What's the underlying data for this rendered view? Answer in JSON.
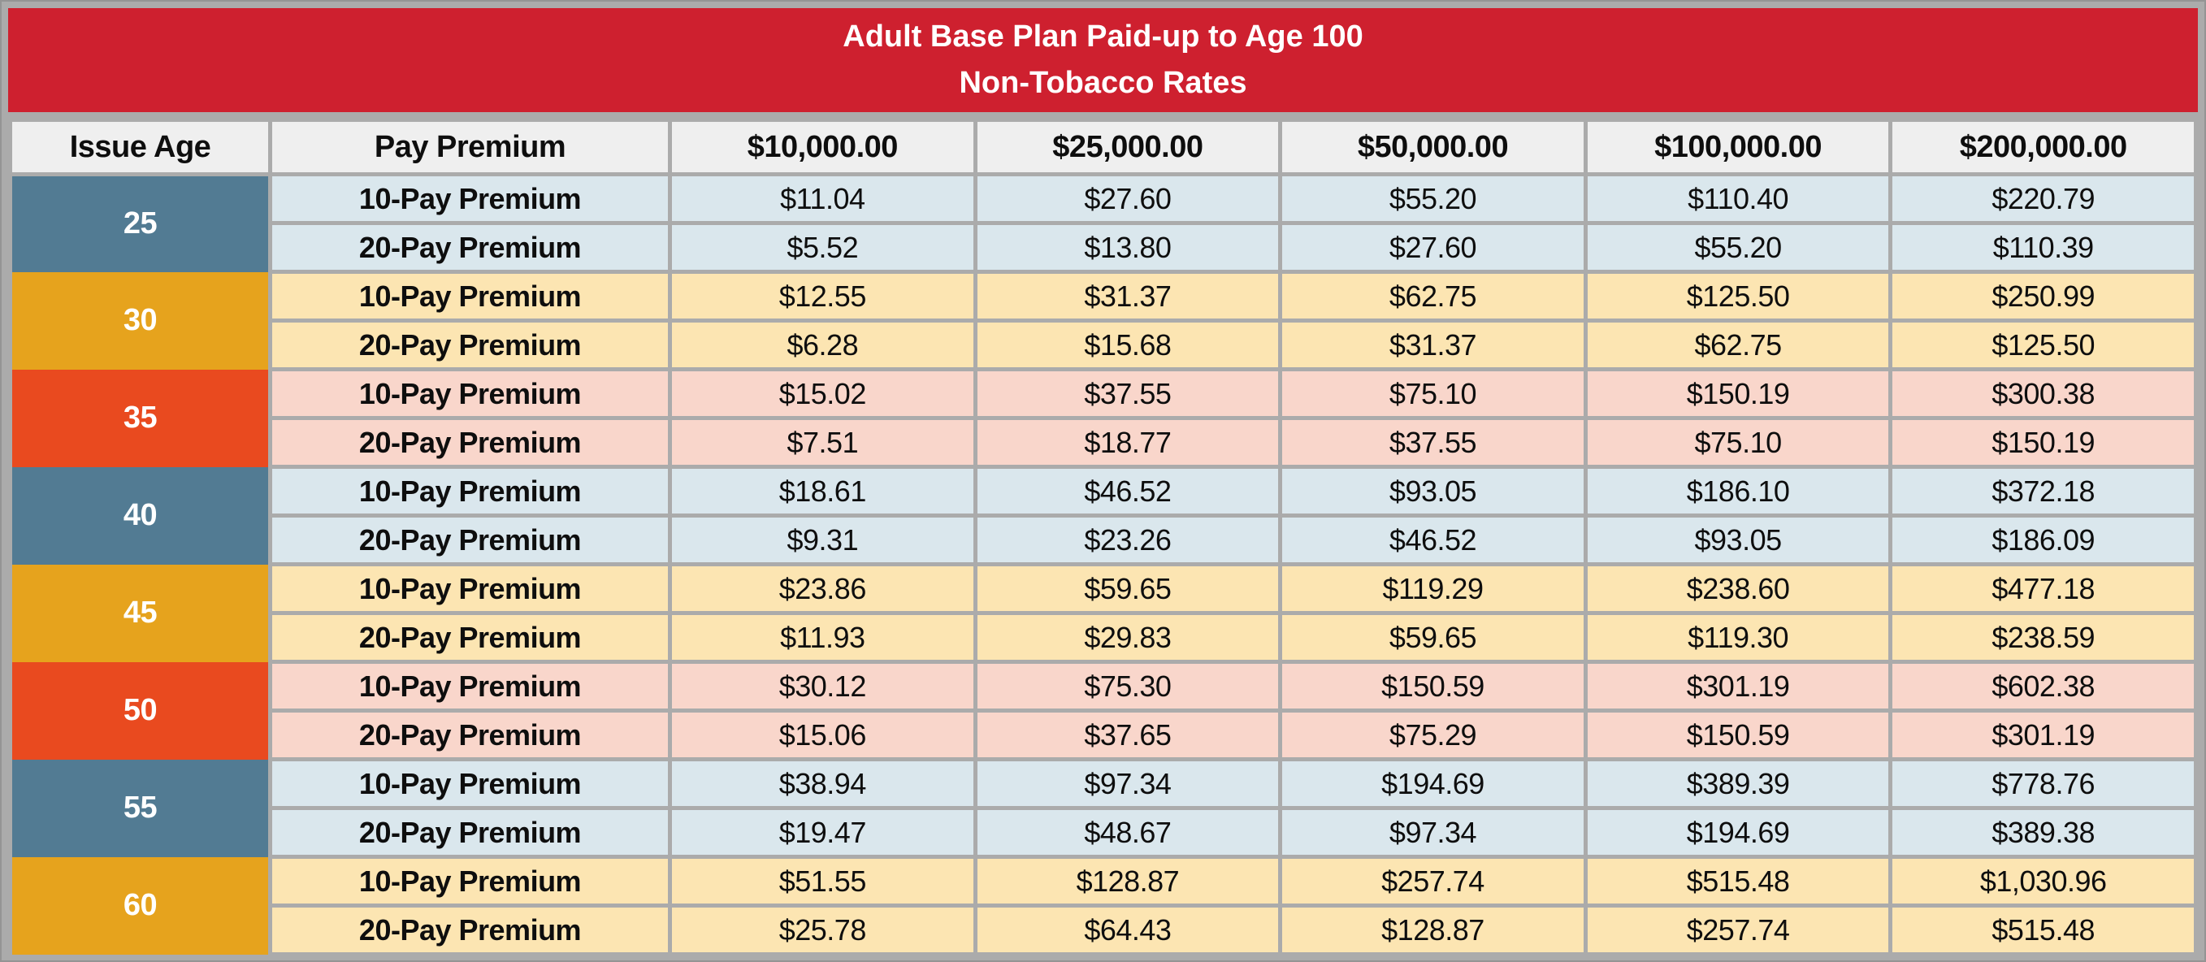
{
  "title": {
    "line1": "Adult Base Plan Paid-up to Age 100",
    "line2": "Non-Tobacco Rates"
  },
  "chart_data": {
    "type": "table",
    "title": "Adult Base Plan Paid-up to Age 100",
    "subtitle": "Non-Tobacco Rates",
    "columns": [
      "Issue Age",
      "Pay Premium",
      "$10,000.00",
      "$25,000.00",
      "$50,000.00",
      "$100,000.00",
      "$200,000.00"
    ],
    "row_labels": [
      "10-Pay Premium",
      "20-Pay Premium"
    ],
    "groups": [
      {
        "age": "25",
        "theme": "blue",
        "pay10": [
          "$11.04",
          "$27.60",
          "$55.20",
          "$110.40",
          "$220.79"
        ],
        "pay20": [
          "$5.52",
          "$13.80",
          "$27.60",
          "$55.20",
          "$110.39"
        ]
      },
      {
        "age": "30",
        "theme": "amber",
        "pay10": [
          "$12.55",
          "$31.37",
          "$62.75",
          "$125.50",
          "$250.99"
        ],
        "pay20": [
          "$6.28",
          "$15.68",
          "$31.37",
          "$62.75",
          "$125.50"
        ]
      },
      {
        "age": "35",
        "theme": "red",
        "pay10": [
          "$15.02",
          "$37.55",
          "$75.10",
          "$150.19",
          "$300.38"
        ],
        "pay20": [
          "$7.51",
          "$18.77",
          "$37.55",
          "$75.10",
          "$150.19"
        ]
      },
      {
        "age": "40",
        "theme": "blue",
        "pay10": [
          "$18.61",
          "$46.52",
          "$93.05",
          "$186.10",
          "$372.18"
        ],
        "pay20": [
          "$9.31",
          "$23.26",
          "$46.52",
          "$93.05",
          "$186.09"
        ]
      },
      {
        "age": "45",
        "theme": "amber",
        "pay10": [
          "$23.86",
          "$59.65",
          "$119.29",
          "$238.60",
          "$477.18"
        ],
        "pay20": [
          "$11.93",
          "$29.83",
          "$59.65",
          "$119.30",
          "$238.59"
        ]
      },
      {
        "age": "50",
        "theme": "red",
        "pay10": [
          "$30.12",
          "$75.30",
          "$150.59",
          "$301.19",
          "$602.38"
        ],
        "pay20": [
          "$15.06",
          "$37.65",
          "$75.29",
          "$150.59",
          "$301.19"
        ]
      },
      {
        "age": "55",
        "theme": "blue",
        "pay10": [
          "$38.94",
          "$97.34",
          "$194.69",
          "$389.39",
          "$778.76"
        ],
        "pay20": [
          "$19.47",
          "$48.67",
          "$97.34",
          "$194.69",
          "$389.38"
        ]
      },
      {
        "age": "60",
        "theme": "amber",
        "pay10": [
          "$51.55",
          "$128.87",
          "$257.74",
          "$515.48",
          "$1,030.96"
        ],
        "pay20": [
          "$25.78",
          "$64.43",
          "$128.87",
          "$257.74",
          "$515.48"
        ]
      }
    ]
  },
  "colors": {
    "banner_red": "#CE202F",
    "grid_gray": "#ABABAB",
    "header_bg": "#EFEFEF",
    "age_blue": "#527B93",
    "age_amber": "#E6A31D",
    "age_orange_red": "#E94A1F",
    "row_tint_blue": "#DAE7ED",
    "row_tint_amber": "#FCE5B2",
    "row_tint_pink": "#F9D6CB",
    "title_text": "#FFFFFF",
    "cell_text": "#0E0E0E"
  }
}
